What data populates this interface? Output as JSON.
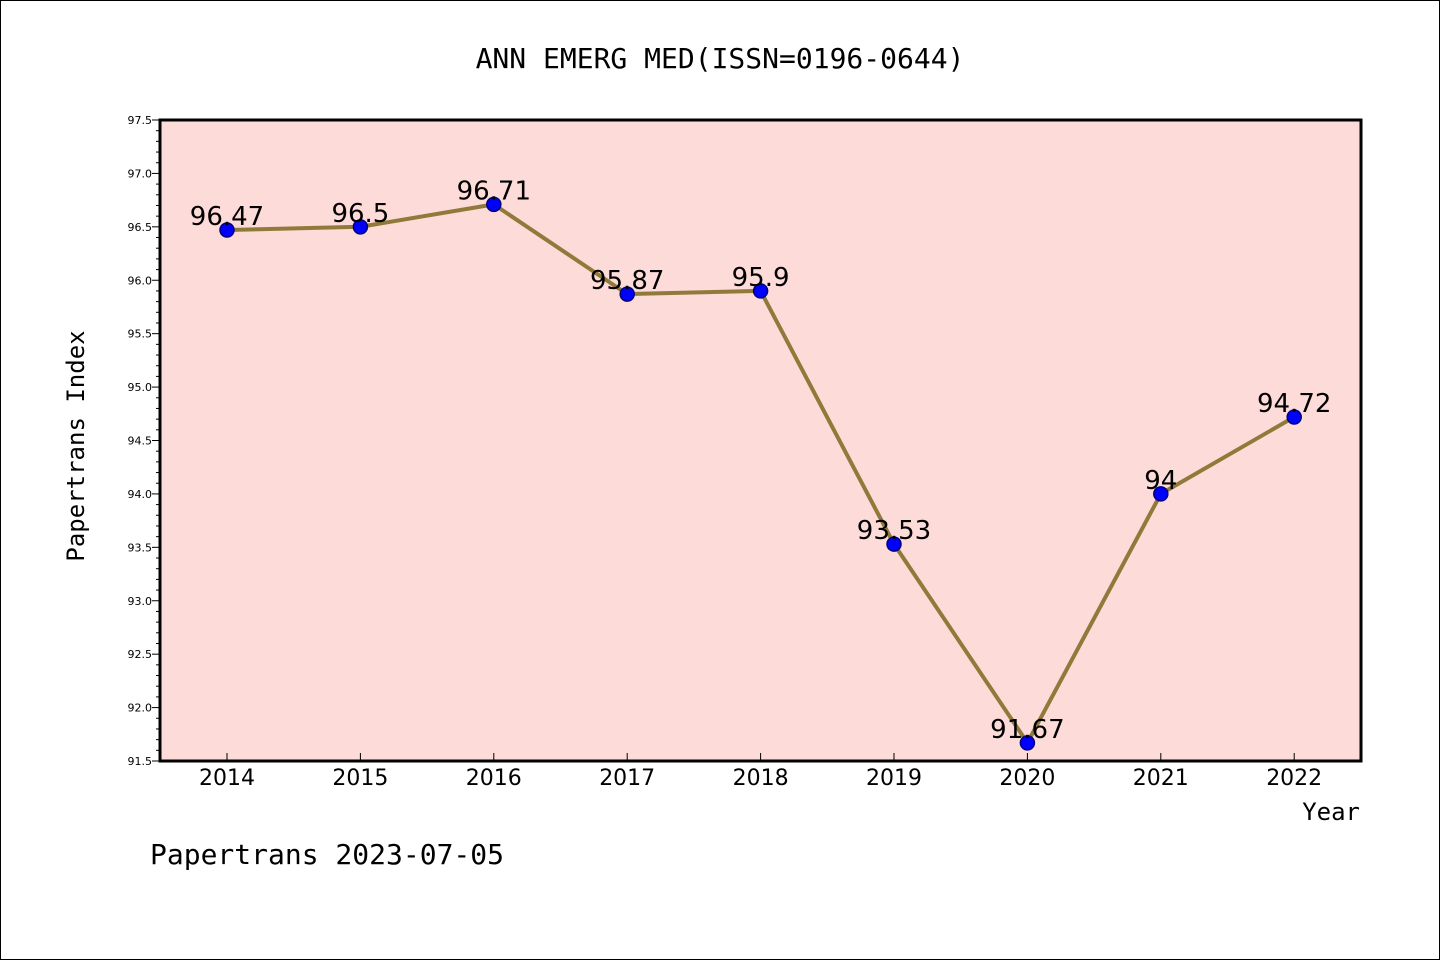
{
  "chart_data": {
    "type": "line",
    "title": "ANN EMERG MED(ISSN=0196-0644)",
    "xlabel": "Year",
    "ylabel": "Papertrans Index",
    "categories": [
      "2014",
      "2015",
      "2016",
      "2017",
      "2018",
      "2019",
      "2020",
      "2021",
      "2022"
    ],
    "values": [
      96.47,
      96.5,
      96.71,
      95.87,
      95.9,
      93.53,
      91.67,
      94,
      94.72
    ],
    "data_labels": [
      "96.47",
      "96.5",
      "96.71",
      "95.87",
      "95.9",
      "93.53",
      "91.67",
      "94",
      "94.72"
    ],
    "ylim": [
      91.5,
      97.5
    ],
    "yticks": [
      "91.5",
      "92.0",
      "92.5",
      "93.0",
      "93.5",
      "94.0",
      "94.5",
      "95.0",
      "95.5",
      "96.0",
      "96.5",
      "97.0",
      "97.5"
    ],
    "grid": false,
    "legend": "none",
    "colors": {
      "plot_background": "#fddbd9",
      "line": "#8f7a3a",
      "marker": "#0000ff",
      "marker_edge": "#000080"
    }
  },
  "footer": "Papertrans 2023-07-05"
}
